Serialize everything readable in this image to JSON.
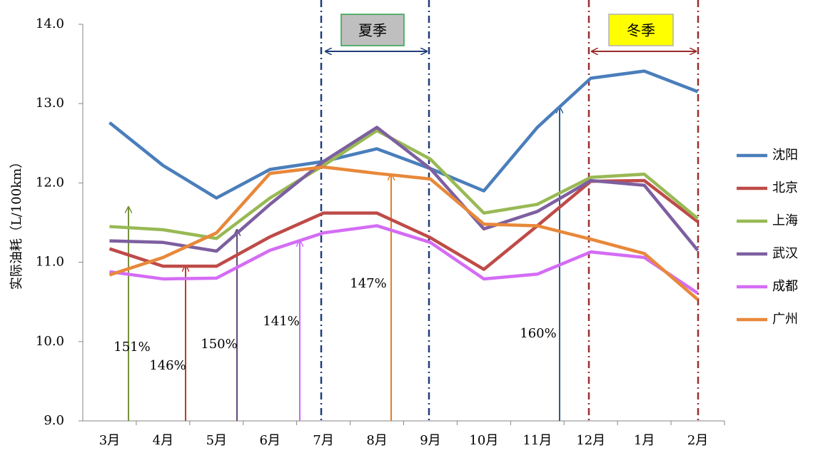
{
  "chart_data": {
    "type": "line",
    "y_label": "实际油耗（L/100km）",
    "categories": [
      "3月",
      "4月",
      "5月",
      "6月",
      "7月",
      "8月",
      "9月",
      "10月",
      "11月",
      "12月",
      "1月",
      "2月"
    ],
    "series": [
      {
        "name": "沈阳",
        "color": "#4a7ebb",
        "values": [
          12.76,
          12.22,
          11.81,
          12.17,
          12.27,
          12.43,
          12.18,
          11.9,
          12.7,
          13.32,
          13.41,
          13.15
        ]
      },
      {
        "name": "北京",
        "color": "#be4b48",
        "values": [
          11.17,
          10.95,
          10.95,
          11.32,
          11.62,
          11.62,
          11.31,
          10.91,
          11.46,
          12.02,
          12.03,
          11.51
        ]
      },
      {
        "name": "上海",
        "color": "#98b954",
        "values": [
          11.45,
          11.41,
          11.3,
          11.81,
          12.22,
          12.66,
          12.3,
          11.62,
          11.73,
          12.07,
          12.11,
          11.55
        ]
      },
      {
        "name": "武汉",
        "color": "#7d5fa0",
        "values": [
          11.27,
          11.25,
          11.14,
          11.73,
          12.27,
          12.7,
          12.18,
          11.42,
          11.64,
          12.03,
          11.97,
          11.15
        ]
      },
      {
        "name": "成都",
        "color": "#d46cf4",
        "values": [
          10.88,
          10.79,
          10.8,
          11.15,
          11.37,
          11.46,
          11.25,
          10.79,
          10.85,
          11.13,
          11.06,
          10.61
        ]
      },
      {
        "name": "广州",
        "color": "#e8883a",
        "values": [
          10.84,
          11.06,
          11.37,
          12.12,
          12.2,
          12.12,
          12.05,
          11.48,
          11.46,
          11.29,
          11.11,
          10.53
        ]
      }
    ],
    "ylim": [
      9,
      14
    ],
    "yticks": [
      {
        "value": 9,
        "label": "9.0"
      },
      {
        "value": 10,
        "label": "10.0"
      },
      {
        "value": 11,
        "label": "11.0"
      },
      {
        "value": 12,
        "label": "12.0"
      },
      {
        "value": 13,
        "label": "13.0"
      },
      {
        "value": 14,
        "label": "14.0"
      }
    ],
    "grid": false,
    "legend": "right",
    "annotations": [
      "151%",
      "146%",
      "150%",
      "141%",
      "147%",
      "160%"
    ],
    "season_labels": [
      "夏季",
      "冬季"
    ]
  }
}
